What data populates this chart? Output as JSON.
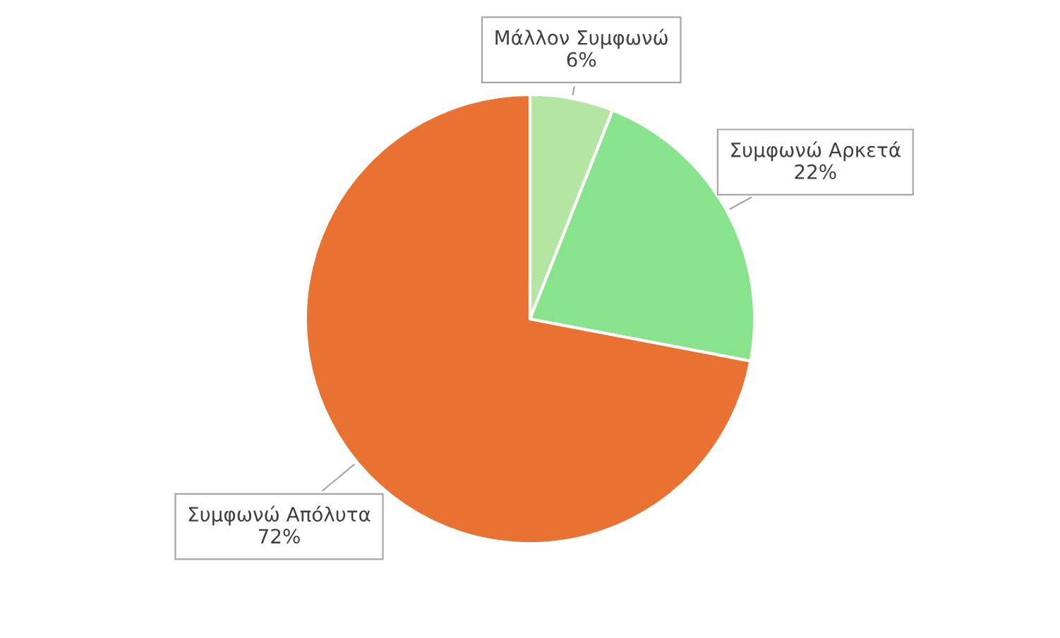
{
  "chart_data": {
    "type": "pie",
    "categories": [
      "Μάλλον Συμφωνώ",
      "Συμφωνώ Αρκετά",
      "Συμφωνώ Απόλυτα"
    ],
    "values": [
      6,
      22,
      72
    ],
    "colors": [
      "#b4e5a2",
      "#87e38c",
      "#e97132"
    ],
    "value_labels": [
      "6%",
      "22%",
      "72%"
    ]
  }
}
